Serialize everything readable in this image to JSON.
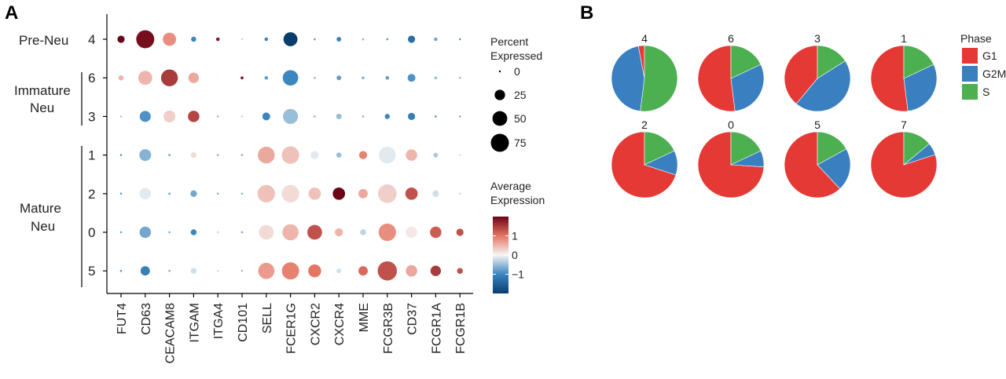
{
  "panels": {
    "a_letter": "A",
    "b_letter": "B"
  },
  "chart_data": [
    {
      "type": "dotplot",
      "rows": [
        "4",
        "6",
        "3",
        "1",
        "2",
        "0",
        "5"
      ],
      "row_groups": [
        {
          "label": "Pre-Neu",
          "rows": [
            "4"
          ]
        },
        {
          "label": "Immature Neu",
          "rows": [
            "6",
            "3"
          ]
        },
        {
          "label": "Mature Neu",
          "rows": [
            "1",
            "2",
            "0",
            "5"
          ]
        }
      ],
      "genes": [
        "FUT4",
        "CD63",
        "CEACAM8",
        "ITGAM",
        "ITGA4",
        "CD101",
        "SELL",
        "FCER1G",
        "CXCR2",
        "CXCR4",
        "MME",
        "FCGR3B",
        "CD37",
        "FCGR1A",
        "FCGR1B"
      ],
      "percent_expressed": [
        [
          12,
          75,
          40,
          6,
          3,
          0.5,
          3,
          45,
          1,
          5,
          1,
          1,
          12,
          3,
          1
        ],
        [
          6,
          45,
          65,
          25,
          0.5,
          2,
          3,
          55,
          1,
          5,
          2,
          3,
          14,
          2,
          1
        ],
        [
          1,
          28,
          32,
          30,
          1,
          1,
          14,
          52,
          1,
          7,
          1,
          6,
          12,
          1,
          0.5
        ],
        [
          1,
          32,
          1,
          8,
          1,
          1,
          65,
          70,
          15,
          6,
          15,
          65,
          30,
          5,
          0.5
        ],
        [
          1,
          30,
          1,
          10,
          1,
          1,
          70,
          70,
          35,
          35,
          20,
          80,
          35,
          10,
          1
        ],
        [
          1,
          30,
          1,
          8,
          1,
          1,
          50,
          60,
          50,
          15,
          8,
          70,
          30,
          30,
          12
        ],
        [
          1,
          20,
          1,
          8,
          0.5,
          0.5,
          60,
          68,
          38,
          5,
          20,
          85,
          30,
          25,
          8
        ]
      ],
      "average_expression": [
        [
          2.0,
          1.9,
          0.8,
          -1.0,
          1.8,
          -0.3,
          -1.0,
          -2.0,
          -0.8,
          -1.0,
          -0.6,
          -0.8,
          -1.3,
          -0.7,
          -0.8
        ],
        [
          0.5,
          0.5,
          1.5,
          0.6,
          0.0,
          1.8,
          -0.8,
          -1.0,
          -0.6,
          -0.8,
          -0.6,
          -0.8,
          -0.9,
          -0.5,
          -0.5
        ],
        [
          -0.4,
          -0.9,
          0.3,
          1.4,
          -0.5,
          0.3,
          -1.0,
          -0.5,
          -0.6,
          -0.5,
          -0.6,
          -1.0,
          -1.1,
          -0.9,
          -0.8
        ],
        [
          -0.8,
          -0.6,
          -0.8,
          0.2,
          -0.6,
          -0.6,
          0.6,
          0.4,
          -0.1,
          -0.5,
          0.9,
          -0.1,
          0.5,
          -0.4,
          -0.2
        ],
        [
          -0.8,
          -0.1,
          -0.8,
          -0.7,
          -0.6,
          -0.6,
          0.4,
          0.2,
          0.4,
          2.0,
          0.6,
          0.3,
          1.3,
          -0.2,
          -0.2
        ],
        [
          -0.7,
          -0.7,
          -0.6,
          -1.0,
          0.3,
          -0.6,
          0.2,
          0.5,
          1.3,
          0.5,
          -0.3,
          0.8,
          0.1,
          1.2,
          1.3
        ],
        [
          -0.8,
          -1.1,
          -0.6,
          -0.2,
          -0.3,
          -0.6,
          0.7,
          0.9,
          1.0,
          -0.2,
          1.1,
          1.3,
          0.6,
          1.5,
          1.3
        ]
      ],
      "size_legend": {
        "title_line1": "Percent",
        "title_line2": "Expressed",
        "levels": [
          0,
          25,
          50,
          75
        ],
        "labels": [
          "0",
          "25",
          "50",
          "75"
        ]
      },
      "color_legend": {
        "title_line1": "Average",
        "title_line2": "Expression",
        "range": [
          -2,
          2
        ],
        "ticks": [
          1,
          0,
          -1
        ],
        "tick_labels": [
          "1",
          "0",
          "−1"
        ]
      },
      "colors": {
        "low": "#083d6e",
        "low_mid": "#3c86bf",
        "mid": "#f5f5f5",
        "high_mid": "#e57461",
        "high": "#6b0317"
      }
    },
    {
      "type": "pie",
      "phases": [
        "G1",
        "G2M",
        "S"
      ],
      "phase_colors": [
        "#e53935",
        "#3a7fbf",
        "#4caf50"
      ],
      "legend_title": "Phase",
      "pies": [
        {
          "label": "4",
          "values": [
            3,
            45,
            52
          ]
        },
        {
          "label": "6",
          "values": [
            52,
            30,
            18
          ]
        },
        {
          "label": "3",
          "values": [
            39,
            45,
            16
          ]
        },
        {
          "label": "1",
          "values": [
            52,
            30,
            18
          ]
        },
        {
          "label": "2",
          "values": [
            70,
            12,
            18
          ]
        },
        {
          "label": "0",
          "values": [
            74,
            8,
            18
          ]
        },
        {
          "label": "5",
          "values": [
            62,
            21,
            17
          ]
        },
        {
          "label": "7",
          "values": [
            80,
            6,
            14
          ]
        }
      ]
    }
  ]
}
